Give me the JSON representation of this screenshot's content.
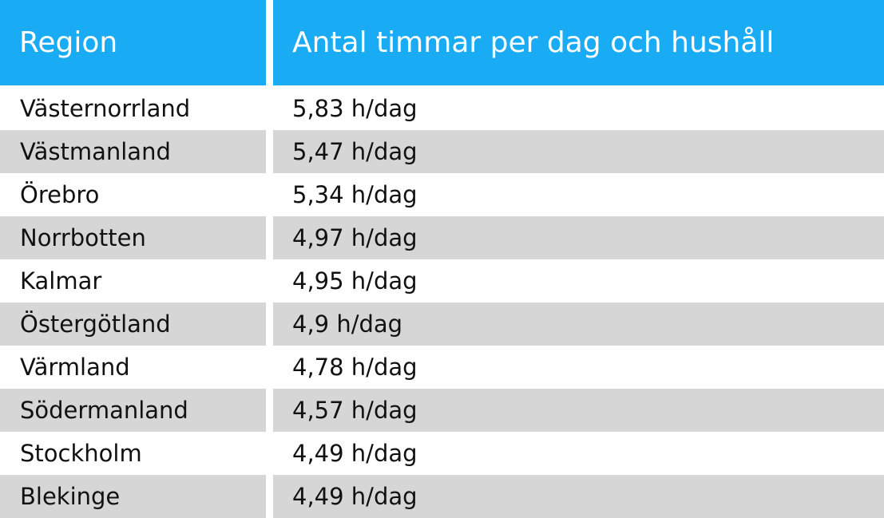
{
  "chart_data": {
    "type": "table",
    "columns": [
      "Region",
      "Antal timmar per dag och hushåll"
    ],
    "rows": [
      [
        "Västernorrland",
        "5,83 h/dag"
      ],
      [
        "Västmanland",
        "5,47 h/dag"
      ],
      [
        "Örebro",
        "5,34 h/dag"
      ],
      [
        "Norrbotten",
        "4,97 h/dag"
      ],
      [
        "Kalmar",
        "4,95 h/dag"
      ],
      [
        "Östergötland",
        "4,9 h/dag"
      ],
      [
        "Värmland",
        "4,78 h/dag"
      ],
      [
        "Södermanland",
        "4,57 h/dag"
      ],
      [
        "Stockholm",
        "4,49 h/dag"
      ],
      [
        "Blekinge",
        "4,49 h/dag"
      ]
    ],
    "values": [
      5.83,
      5.47,
      5.34,
      4.97,
      4.95,
      4.9,
      4.78,
      4.57,
      4.49,
      4.49
    ],
    "unit": "h/dag"
  },
  "colors": {
    "header_background": "#1aabf5",
    "header_text": "#ffffff",
    "stripe": "#d6d6d6",
    "body_text": "#111111"
  }
}
